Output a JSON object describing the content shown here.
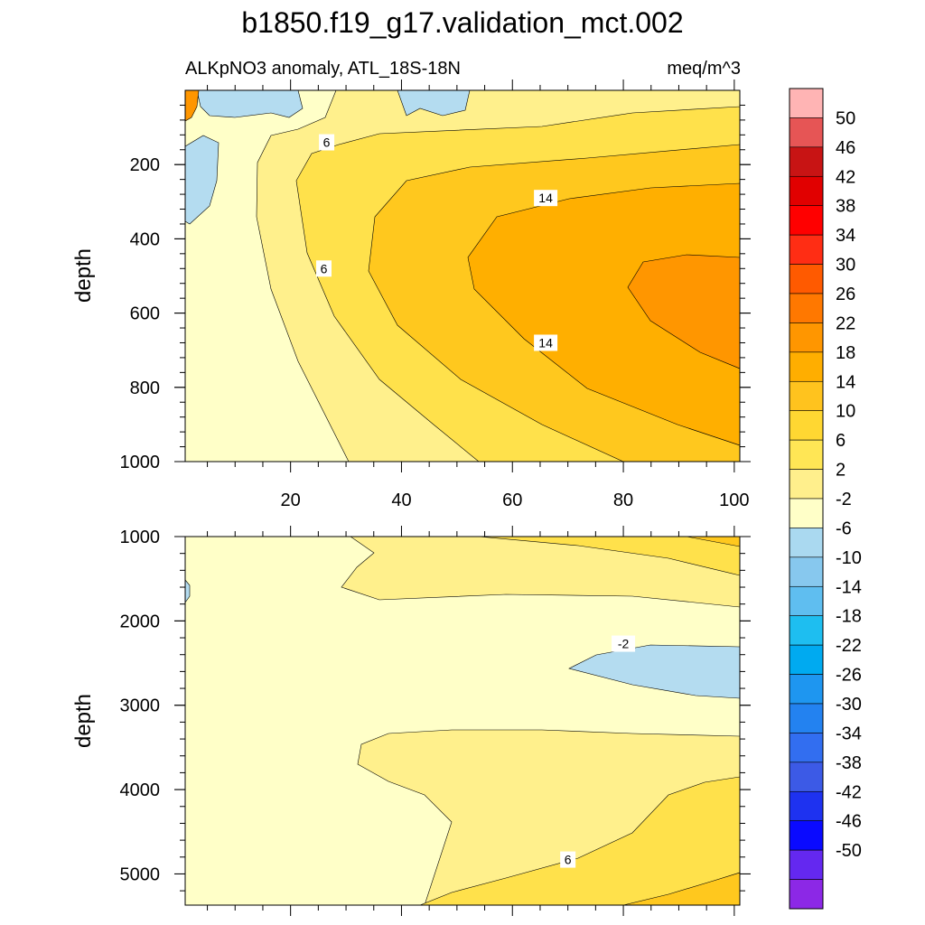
{
  "title": "b1850.f19_g17.validation_mct.002",
  "chart_data": {
    "type": "heatmap",
    "title": "b1850.f19_g17.validation_mct.002",
    "left_label": "ALKpNO3 anomaly, ATL_18S-18N",
    "right_label": "meq/m^3",
    "panels": [
      {
        "name": "upper",
        "ylabel": "depth",
        "xlim": [
          1,
          101
        ],
        "ylim": [
          1000,
          0
        ],
        "x_ticks": [
          20,
          40,
          60,
          80,
          100
        ],
        "y_ticks": [
          200,
          400,
          600,
          800,
          1000
        ],
        "contour_labels": [
          {
            "text": "6",
            "x": 26.5,
            "y": 140
          },
          {
            "text": "6",
            "x": 26,
            "y": 480
          },
          {
            "text": "14",
            "x": 66,
            "y": 290
          },
          {
            "text": "14",
            "x": 66,
            "y": 680
          }
        ]
      },
      {
        "name": "lower",
        "ylabel": "depth",
        "xlim": [
          1,
          101
        ],
        "ylim": [
          5370,
          1000
        ],
        "y_ticks": [
          1000,
          2000,
          3000,
          4000,
          5000
        ],
        "contour_labels": [
          {
            "text": "-2",
            "x": 80,
            "y": 2270
          },
          {
            "text": "6",
            "x": 70,
            "y": 4830
          }
        ]
      }
    ],
    "colorbar": {
      "labels": [
        "50",
        "46",
        "42",
        "38",
        "34",
        "30",
        "26",
        "22",
        "18",
        "14",
        "10",
        "6",
        "2",
        "-2",
        "-6",
        "-10",
        "-14",
        "-18",
        "-22",
        "-26",
        "-30",
        "-34",
        "-38",
        "-42",
        "-46",
        "-50"
      ],
      "colors": [
        "#ffb4b4",
        "#e65555",
        "#c81414",
        "#e10000",
        "#ff0000",
        "#ff2d14",
        "#ff5a00",
        "#ff7800",
        "#ff9600",
        "#ffae00",
        "#ffc31e",
        "#ffd732",
        "#ffe655",
        "#ffef8c",
        "#ffffc8",
        "#aad9f0",
        "#87c8ee",
        "#5fbef0",
        "#1ebef0",
        "#00aaf0",
        "#1e96f0",
        "#2382f0",
        "#326ef0",
        "#3c5ae6",
        "#1e32f0",
        "#0a0aff",
        "#6428f0",
        "#8c28e6"
      ]
    },
    "region_colors": {
      "neg2": "#b4dcf0",
      "c0": "#ffffc8",
      "c2": "#fff08c",
      "c6": "#ffe14b",
      "c10": "#ffc81e",
      "c14": "#ffaf00",
      "c18": "#ff9600"
    }
  }
}
